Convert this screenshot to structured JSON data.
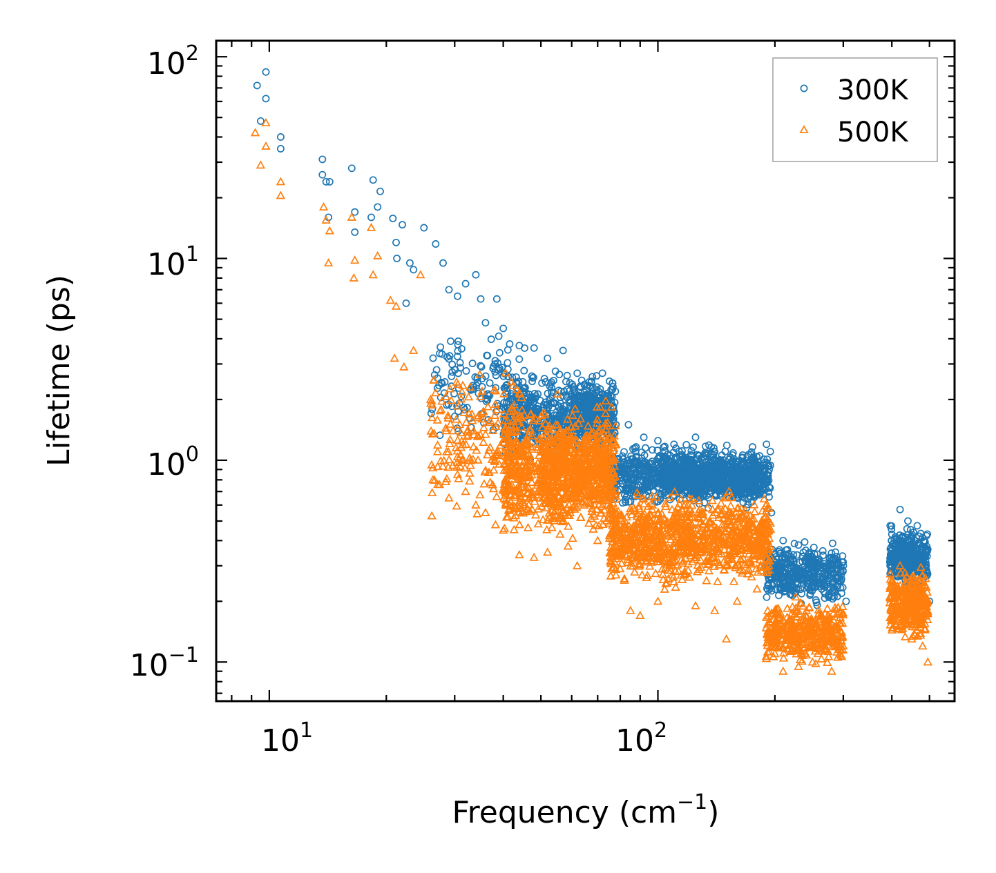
{
  "chart_data": {
    "type": "scatter",
    "title": "",
    "xlabel": "Frequency (cm",
    "xlabel_sup": "−1",
    "xlabel_close": ")",
    "ylabel": "Lifetime (ps)",
    "xscale": "log",
    "yscale": "log",
    "xlim": [
      7.3,
      580
    ],
    "ylim": [
      0.064,
      120
    ],
    "x_ticks": [
      {
        "base": "10",
        "exp": "1",
        "value": 10
      },
      {
        "base": "10",
        "exp": "2",
        "value": 100
      }
    ],
    "y_ticks": [
      {
        "base": "10",
        "exp": "2",
        "value": 100
      },
      {
        "base": "10",
        "exp": "1",
        "value": 10
      },
      {
        "base": "10",
        "exp": "0",
        "value": 1
      },
      {
        "base": "10",
        "exp": "−1",
        "value": 0.1
      }
    ],
    "legend_position": "top-right",
    "series": [
      {
        "name": "300K",
        "marker": "circle",
        "color": "#1f77b4",
        "anchor_points": [
          [
            9.3,
            72
          ],
          [
            9.5,
            48
          ],
          [
            9.8,
            84
          ],
          [
            9.8,
            62
          ],
          [
            10.7,
            40
          ],
          [
            10.7,
            35
          ],
          [
            13.7,
            31
          ],
          [
            13.7,
            26
          ],
          [
            14,
            24
          ],
          [
            14.2,
            16
          ],
          [
            14.3,
            24
          ],
          [
            16.3,
            28
          ],
          [
            16.6,
            17
          ],
          [
            16.6,
            13.5
          ],
          [
            18.3,
            16
          ],
          [
            18.5,
            24.5
          ],
          [
            19,
            18
          ],
          [
            19.3,
            21.5
          ],
          [
            20.8,
            15.8
          ],
          [
            21.2,
            12
          ],
          [
            21.3,
            10
          ],
          [
            22,
            14.7
          ],
          [
            22.5,
            6
          ],
          [
            23,
            9.5
          ],
          [
            23.5,
            8.8
          ],
          [
            25,
            14.2
          ],
          [
            26.8,
            11.8
          ],
          [
            28,
            9.5
          ],
          [
            29,
            7
          ],
          [
            30.5,
            6.5
          ],
          [
            32,
            7.5
          ],
          [
            34,
            8.3
          ],
          [
            35,
            6.3
          ],
          [
            36,
            4.8
          ],
          [
            38.5,
            6.3
          ],
          [
            40,
            4.5
          ],
          [
            44,
            3.7
          ],
          [
            48,
            3.6
          ],
          [
            52,
            3.2
          ],
          [
            57,
            3.5
          ],
          [
            62,
            2.7
          ],
          [
            68,
            2.3
          ],
          [
            72,
            2.7
          ],
          [
            78,
            1.5
          ],
          [
            84,
            1.5
          ],
          [
            92,
            1.3
          ],
          [
            100,
            1.25
          ],
          [
            110,
            1.2
          ],
          [
            125,
            1.3
          ],
          [
            140,
            1.1
          ],
          [
            160,
            0.95
          ],
          [
            180,
            0.85
          ],
          [
            196,
            0.55
          ],
          [
            210,
            0.4
          ],
          [
            230,
            0.38
          ],
          [
            250,
            0.32
          ],
          [
            275,
            0.27
          ],
          [
            300,
            0.3
          ],
          [
            305,
            0.2
          ],
          [
            400,
            0.43
          ],
          [
            420,
            0.57
          ],
          [
            440,
            0.5
          ],
          [
            470,
            0.42
          ],
          [
            490,
            0.3
          ],
          [
            500,
            0.2
          ]
        ],
        "clusters": [
          {
            "x": [
              26,
              46
            ],
            "y": [
              1.1,
              5.0
            ],
            "n": 140
          },
          {
            "x": [
              40,
              78
            ],
            "y": [
              0.9,
              3.0
            ],
            "n": 600
          },
          {
            "x": [
              60,
              75
            ],
            "y": [
              1.1,
              2.6
            ],
            "n": 220
          },
          {
            "x": [
              75,
              195
            ],
            "y": [
              0.55,
              1.3
            ],
            "n": 900
          },
          {
            "x": [
              100,
              180
            ],
            "y": [
              0.6,
              1.1
            ],
            "n": 400
          },
          {
            "x": [
              190,
              300
            ],
            "y": [
              0.18,
              0.42
            ],
            "n": 420
          },
          {
            "x": [
              395,
              495
            ],
            "y": [
              0.22,
              0.5
            ],
            "n": 360
          }
        ]
      },
      {
        "name": "500K",
        "marker": "triangle",
        "color": "#ff7f0e",
        "anchor_points": [
          [
            9.2,
            42
          ],
          [
            9.5,
            29
          ],
          [
            9.8,
            36
          ],
          [
            9.8,
            47
          ],
          [
            10.7,
            24
          ],
          [
            10.7,
            20.5
          ],
          [
            13.8,
            18
          ],
          [
            14,
            15.5
          ],
          [
            14.2,
            9.5
          ],
          [
            14.3,
            13.7
          ],
          [
            16.3,
            16
          ],
          [
            16.6,
            9.8
          ],
          [
            16.5,
            8
          ],
          [
            18.3,
            14.2
          ],
          [
            18.5,
            8.3
          ],
          [
            19,
            10.3
          ],
          [
            20.5,
            6.2
          ],
          [
            21,
            3.2
          ],
          [
            21.2,
            5.8
          ],
          [
            22.2,
            2.9
          ],
          [
            23.5,
            3.5
          ],
          [
            24.5,
            8.3
          ],
          [
            26.3,
            1.35
          ],
          [
            26.5,
            2.5
          ],
          [
            28.5,
            1.4
          ],
          [
            29,
            0.65
          ],
          [
            30.5,
            0.85
          ],
          [
            32,
            0.7
          ],
          [
            34,
            0.6
          ],
          [
            36,
            0.55
          ],
          [
            40,
            0.45
          ],
          [
            44,
            0.34
          ],
          [
            48,
            0.33
          ],
          [
            52,
            0.35
          ],
          [
            56,
            0.43
          ],
          [
            62,
            0.3
          ],
          [
            70,
            0.4
          ],
          [
            78,
            0.27
          ],
          [
            85,
            0.18
          ],
          [
            90,
            0.17
          ],
          [
            100,
            0.2
          ],
          [
            110,
            0.25
          ],
          [
            125,
            0.19
          ],
          [
            140,
            0.18
          ],
          [
            150,
            0.13
          ],
          [
            160,
            0.2
          ],
          [
            180,
            0.23
          ],
          [
            200,
            0.11
          ],
          [
            210,
            0.09
          ],
          [
            230,
            0.095
          ],
          [
            250,
            0.1
          ],
          [
            280,
            0.09
          ],
          [
            300,
            0.12
          ],
          [
            400,
            0.18
          ],
          [
            420,
            0.3
          ],
          [
            450,
            0.13
          ],
          [
            480,
            0.12
          ],
          [
            495,
            0.1
          ]
        ],
        "clusters": [
          {
            "x": [
              26,
              45
            ],
            "y": [
              0.45,
              3.5
            ],
            "n": 200
          },
          {
            "x": [
              40,
              78
            ],
            "y": [
              0.35,
              2.2
            ],
            "n": 800
          },
          {
            "x": [
              50,
              75
            ],
            "y": [
              0.5,
              1.8
            ],
            "n": 300
          },
          {
            "x": [
              75,
              195
            ],
            "y": [
              0.22,
              0.75
            ],
            "n": 1000
          },
          {
            "x": [
              190,
              300
            ],
            "y": [
              0.09,
              0.22
            ],
            "n": 420
          },
          {
            "x": [
              395,
              495
            ],
            "y": [
              0.12,
              0.32
            ],
            "n": 320
          }
        ]
      }
    ]
  }
}
